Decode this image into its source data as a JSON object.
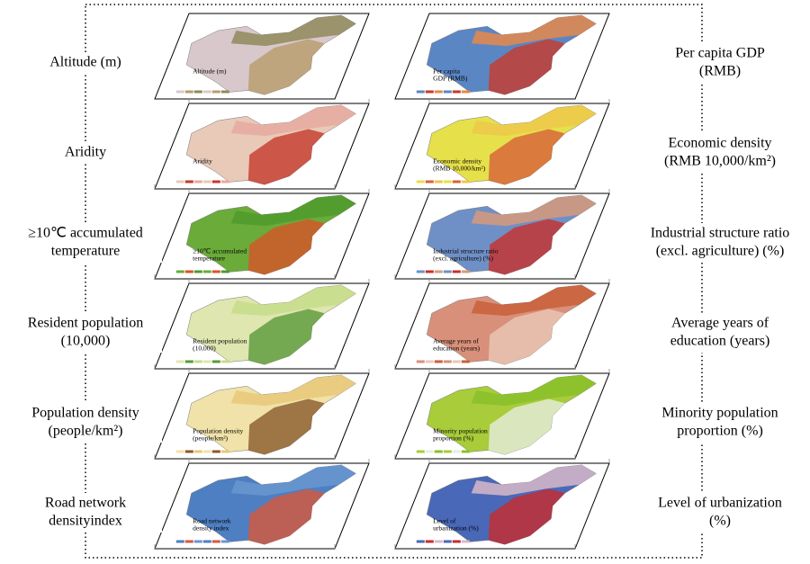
{
  "left_column": {
    "layers": [
      {
        "label": [
          "Altitude (m)"
        ],
        "legend_title": [
          "Altitude (m)"
        ]
      },
      {
        "label": [
          "Aridity"
        ],
        "legend_title": [
          "Aridity"
        ]
      },
      {
        "label": [
          "≥10℃ accumulated",
          "temperature"
        ],
        "legend_title": [
          "≥10℃ accumulated",
          "temperature"
        ]
      },
      {
        "label": [
          "Resident population",
          "(10,000)"
        ],
        "legend_title": [
          "Resident population",
          "(10,000)"
        ]
      },
      {
        "label": [
          "Population density",
          "(people/km²)"
        ],
        "legend_title": [
          "Population density",
          "(people/km²)"
        ]
      },
      {
        "label": [
          "Road network",
          "densityindex"
        ],
        "legend_title": [
          "Road network",
          "density index"
        ]
      }
    ]
  },
  "right_column": {
    "layers": [
      {
        "label": [
          "Per capita GDP",
          "(RMB)"
        ],
        "legend_title": [
          "Per capita",
          "GDP (RMB)"
        ]
      },
      {
        "label": [
          "Economic density",
          "(RMB 10,000/km²)"
        ],
        "legend_title": [
          "Economic density",
          "(RMB 10,000/km²)"
        ]
      },
      {
        "label": [
          "Industrial structure ratio",
          "(excl. agriculture) (%)"
        ],
        "legend_title": [
          "Industrial structure ratio",
          "(excl. agriculture) (%)"
        ]
      },
      {
        "label": [
          "Average years of",
          "education (years)"
        ],
        "legend_title": [
          "Average years of",
          "education (years)"
        ]
      },
      {
        "label": [
          "Minority population",
          "proportion (%)"
        ],
        "legend_title": [
          "Minority population",
          "proportion (%)"
        ]
      },
      {
        "label": [
          "Level of urbanization",
          "(%)"
        ],
        "legend_title": [
          "Level of",
          "urbanization (%)"
        ]
      }
    ]
  }
}
